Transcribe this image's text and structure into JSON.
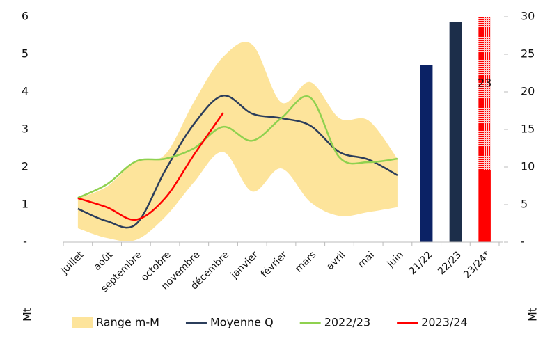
{
  "chart_data": {
    "type": "combo",
    "categories": [
      "juillet",
      "août",
      "septembre",
      "octobre",
      "novembre",
      "décembre",
      "janvier",
      "février",
      "mars",
      "avril",
      "mai",
      "juin",
      "21/22",
      "22/23",
      "23/24*"
    ],
    "ylim": [
      0,
      6
    ],
    "yticks": [
      {
        "value": 0,
        "label": "-"
      },
      1,
      2,
      3,
      4,
      5,
      6
    ],
    "y2lim": [
      0,
      30
    ],
    "y2ticks": [
      {
        "value": 0,
        "label": "-"
      },
      5,
      10,
      15,
      20,
      25,
      30
    ],
    "y_label": "Mt",
    "y2_label": "Mt",
    "legend": "bottom",
    "series": [
      {
        "name": "Range m-M",
        "type": "range",
        "color": "#fde49b",
        "low": [
          0.37,
          0.11,
          0.06,
          0.67,
          1.6,
          2.4,
          1.35,
          1.96,
          1.07,
          0.7,
          0.8,
          0.93,
          null,
          null,
          null
        ],
        "high": [
          1.17,
          1.48,
          2.15,
          2.33,
          3.74,
          4.93,
          5.26,
          3.72,
          4.26,
          3.3,
          3.24,
          2.22,
          null,
          null,
          null
        ]
      },
      {
        "name": "Moyenne Q",
        "type": "line",
        "color": "#2b3d5b",
        "values": [
          0.89,
          0.56,
          0.48,
          1.9,
          3.15,
          3.9,
          3.42,
          3.3,
          3.1,
          2.4,
          2.2,
          1.78,
          null,
          null,
          null
        ]
      },
      {
        "name": "2022/23",
        "type": "line",
        "color": "#8fd14f",
        "values": [
          1.18,
          1.54,
          2.15,
          2.22,
          2.5,
          3.07,
          2.7,
          3.3,
          3.85,
          2.26,
          2.13,
          2.22,
          null,
          null,
          null
        ]
      },
      {
        "name": "2023/24",
        "type": "line",
        "color": "#ff0000",
        "values": [
          1.17,
          0.93,
          0.6,
          1.17,
          2.33,
          3.44,
          null,
          null,
          null,
          null,
          null,
          null,
          null,
          null,
          null
        ]
      },
      {
        "type": "bar",
        "axis": "y2",
        "colors": [
          null,
          null,
          null,
          null,
          null,
          null,
          null,
          null,
          null,
          null,
          null,
          null,
          "#0b2265",
          "#1c2e4a",
          "#ff0000"
        ],
        "values": [
          null,
          null,
          null,
          null,
          null,
          null,
          null,
          null,
          null,
          null,
          null,
          null,
          23.6,
          29.3,
          9.6
        ]
      },
      {
        "type": "bar",
        "axis": "y2",
        "stacked": true,
        "pattern": "dots",
        "color": "#ff0000",
        "data_labels": true,
        "values": [
          null,
          null,
          null,
          null,
          null,
          null,
          null,
          null,
          null,
          null,
          null,
          null,
          null,
          null,
          23
        ]
      }
    ]
  }
}
